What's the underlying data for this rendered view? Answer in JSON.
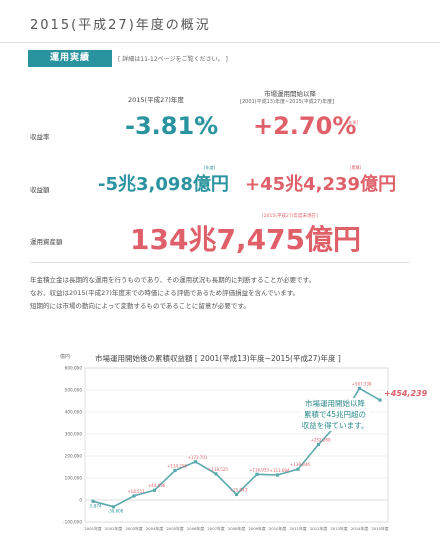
{
  "page": {
    "title": "2015(平成27)年度の概況",
    "section_label": "運用実績",
    "section_note": "[ 詳細は11-12ページをご覧ください。 ]"
  },
  "table": {
    "col_year_header": "2015(平成27)年度",
    "col_cum_header": "市場運用開始以降",
    "col_cum_sub": "[2001(平成13)年度~2015(平成27)年度]",
    "rows": {
      "rate": {
        "label": "収益率",
        "year_value": "-3.81%",
        "year_tag": "[年率]",
        "cum_value": "+2.70%",
        "cum_tag": "[年率]"
      },
      "amount": {
        "label": "収益額",
        "year_value": "-5兆3,098億円",
        "year_tag": "[年度]",
        "cum_value": "+45兆4,239億円",
        "cum_tag": "[累積]"
      },
      "assets": {
        "label": "運用資産額",
        "value": "134兆7,475億円",
        "note": "[2015(平成27)年度末現在]"
      }
    }
  },
  "body_text": [
    "年金積立金は長期的な運用を行うものであり、その運用状況も長期的に判断することが必要です。",
    "なお、収益は2015(平成27)年度末での時価による評価であるため評価損益を含んでいます。",
    "短期的には市場の動向によって変動するものであることに留意が必要です。"
  ],
  "callout": {
    "line1": "市場運用開始以降",
    "line2": "累積で45兆円超の",
    "line3": "収益を得ています。"
  },
  "colors": {
    "teal": "#2a93a0",
    "pink": "#e0606a",
    "line": "#5aa9ad",
    "grid": "#e6e6e6"
  },
  "chart_data": {
    "type": "line",
    "title": "市場運用開始後の累積収益額 [ 2001(平成13)年度~2015(平成27)年度 ]",
    "ylabel": "億円",
    "ylim": [
      -100000,
      600000
    ],
    "yticks": [
      "-100,000",
      "0",
      "100,000",
      "200,000",
      "300,000",
      "400,000",
      "500,000",
      "600,000"
    ],
    "categories": [
      "2001年度",
      "2002年度",
      "2003年度",
      "2004年度",
      "2005年度",
      "2006年度",
      "2007年度",
      "2008年度",
      "2009年度",
      "2010年度",
      "2011年度",
      "2012年度",
      "2013年度",
      "2014年度",
      "2015年度"
    ],
    "series": [
      {
        "values": [
          -5874,
          -30608,
          18511,
          44436,
          134256,
          173701,
          118525,
          25043,
          116933,
          113684,
          139846,
          252289,
          354615,
          507338,
          454239
        ],
        "labels": [
          "-5,874",
          "-30,608",
          "+18,511",
          "+44,436",
          "+134,256",
          "+173,701",
          "+118,525",
          "+25,043",
          "+116,933",
          "+113,684",
          "+139,846",
          "+252,289",
          "+354,615",
          "+507,338",
          "+454,239"
        ]
      }
    ]
  }
}
